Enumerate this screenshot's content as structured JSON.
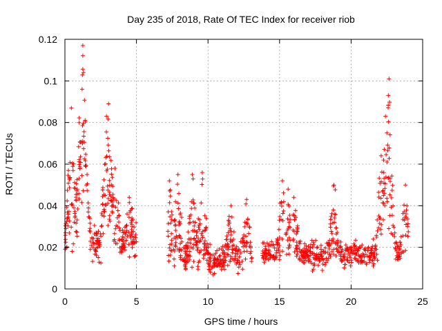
{
  "chart_data": {
    "type": "scatter",
    "title": "Day 235 of 2018, Rate Of TEC Index for receiver riob",
    "xlabel": "GPS time / hours",
    "ylabel": "ROTI / TECUs",
    "xlim": [
      0,
      25
    ],
    "ylim": [
      0,
      0.12
    ],
    "xticks": [
      0,
      5,
      10,
      15,
      20,
      25
    ],
    "xtick_labels": [
      "0",
      "5",
      "10",
      "15",
      "20",
      "25"
    ],
    "yticks": [
      0,
      0.02,
      0.04,
      0.06,
      0.08,
      0.1,
      0.12
    ],
    "ytick_labels": [
      "0",
      "0.02",
      "0.04",
      "0.06",
      "0.08",
      "0.1",
      "0.12"
    ],
    "grid": true,
    "marker": "+",
    "series_color": "#ff0000",
    "segments": [
      {
        "x": [
          0.0,
          5.0
        ],
        "base": 0.022,
        "spread": 0.012,
        "density": 320
      },
      {
        "x": [
          7.2,
          13.1
        ],
        "base": 0.014,
        "spread": 0.009,
        "density": 380
      },
      {
        "x": [
          13.8,
          24.0
        ],
        "base": 0.017,
        "spread": 0.009,
        "density": 560
      }
    ],
    "peaks": [
      {
        "x": 0.45,
        "y": 0.087
      },
      {
        "x": 1.0,
        "y": 0.08
      },
      {
        "x": 1.25,
        "y": 0.117
      },
      {
        "x": 1.3,
        "y": 0.104
      },
      {
        "x": 1.2,
        "y": 0.096
      },
      {
        "x": 1.5,
        "y": 0.05
      },
      {
        "x": 2.9,
        "y": 0.083
      },
      {
        "x": 3.05,
        "y": 0.089
      },
      {
        "x": 3.5,
        "y": 0.058
      },
      {
        "x": 4.5,
        "y": 0.044
      },
      {
        "x": 7.3,
        "y": 0.052
      },
      {
        "x": 7.9,
        "y": 0.055
      },
      {
        "x": 8.9,
        "y": 0.055
      },
      {
        "x": 9.6,
        "y": 0.056
      },
      {
        "x": 11.6,
        "y": 0.04
      },
      {
        "x": 12.7,
        "y": 0.043
      },
      {
        "x": 15.2,
        "y": 0.052
      },
      {
        "x": 15.6,
        "y": 0.048
      },
      {
        "x": 16.0,
        "y": 0.044
      },
      {
        "x": 18.8,
        "y": 0.05
      },
      {
        "x": 22.1,
        "y": 0.064
      },
      {
        "x": 22.4,
        "y": 0.083
      },
      {
        "x": 22.6,
        "y": 0.093
      },
      {
        "x": 22.65,
        "y": 0.101
      },
      {
        "x": 22.5,
        "y": 0.075
      },
      {
        "x": 23.8,
        "y": 0.05
      },
      {
        "x": 23.9,
        "y": 0.04
      }
    ]
  }
}
